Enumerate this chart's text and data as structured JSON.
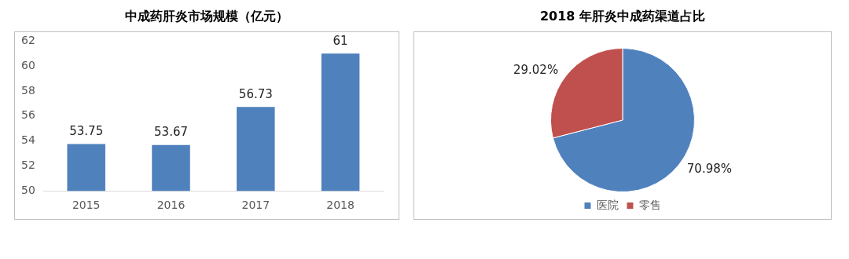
{
  "chart_data": [
    {
      "type": "bar",
      "title": "中成药肝炎市场规模（亿元）",
      "categories": [
        "2015",
        "2016",
        "2017",
        "2018"
      ],
      "values": [
        53.75,
        53.67,
        56.73,
        61
      ],
      "color": "#4f81bd",
      "ylim": [
        50,
        62
      ],
      "yticks": [
        50,
        52,
        54,
        56,
        58,
        60,
        62
      ],
      "grid": false,
      "data_labels": true
    },
    {
      "type": "pie",
      "title": "2018 年肝炎中成药渠道占比",
      "categories": [
        "医院",
        "零售"
      ],
      "values": [
        70.98,
        29.02
      ],
      "colors": [
        "#4f81bd",
        "#c0504d"
      ],
      "legend": "bottom",
      "data_labels": true,
      "value_labels": [
        "70.98%",
        "29.02%"
      ]
    }
  ]
}
